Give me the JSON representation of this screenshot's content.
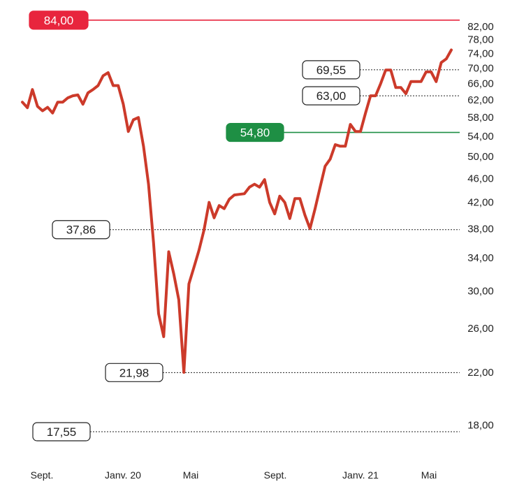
{
  "chart_data": {
    "type": "line",
    "y_scale": "log",
    "ylim": [
      17,
      86
    ],
    "yticks": [
      "18,00",
      "22,00",
      "26,00",
      "30,00",
      "34,00",
      "38,00",
      "42,00",
      "46,00",
      "50,00",
      "54,00",
      "58,00",
      "62,00",
      "66,00",
      "70,00",
      "74,00",
      "78,00",
      "82,00"
    ],
    "ytick_values": [
      18,
      22,
      26,
      30,
      34,
      38,
      42,
      46,
      50,
      54,
      58,
      62,
      66,
      70,
      74,
      78,
      82
    ],
    "x_labels": [
      "Sept.",
      "Janv. 20",
      "Mai",
      "Sept.",
      "Janv. 21",
      "Mai"
    ],
    "series": [
      {
        "color": "#cc3a2a",
        "values": [
          61.5,
          60.2,
          64.5,
          60.5,
          59.5,
          60.3,
          59.0,
          61.5,
          61.5,
          62.5,
          63.0,
          63.2,
          61.0,
          63.7,
          64.5,
          65.5,
          68.0,
          68.8,
          65.5,
          65.5,
          61.0,
          55.0,
          57.5,
          58.0,
          52.0,
          45.0,
          36.0,
          27.5,
          25.2,
          34.8,
          32.0,
          29.0,
          22.0,
          30.8,
          32.8,
          35.0,
          37.8,
          42.0,
          39.6,
          41.5,
          41.0,
          42.5,
          43.2,
          43.3,
          43.4,
          44.5,
          45.0,
          44.5,
          45.8,
          42.0,
          40.2,
          43.0,
          42.0,
          39.5,
          42.6,
          42.6,
          40.0,
          38.0,
          41.0,
          44.5,
          48.2,
          49.5,
          52.3,
          52.0,
          52.0,
          56.5,
          55.0,
          55.0,
          59.0,
          63.0,
          63.0,
          66.0,
          69.5,
          69.5,
          65.0,
          65.0,
          63.5,
          66.5,
          66.5,
          66.5,
          69.0,
          69.0,
          66.5,
          71.5,
          72.5,
          75.0
        ]
      }
    ],
    "reference_lines": [
      {
        "label": "84,00",
        "value": 84.0,
        "color": "#e8253d",
        "style": "solid"
      },
      {
        "label": "54,80",
        "value": 54.8,
        "color": "#1e8f44",
        "style": "solid"
      },
      {
        "label": "69,55",
        "value": 69.55,
        "color": "#222222",
        "style": "dotted"
      },
      {
        "label": "63,00",
        "value": 63.0,
        "color": "#222222",
        "style": "dotted"
      },
      {
        "label": "37,86",
        "value": 37.86,
        "color": "#222222",
        "style": "dotted"
      },
      {
        "label": "21,98",
        "value": 21.98,
        "color": "#222222",
        "style": "dotted"
      },
      {
        "label": "17,55",
        "value": 17.55,
        "color": "#222222",
        "style": "dotted"
      }
    ]
  }
}
